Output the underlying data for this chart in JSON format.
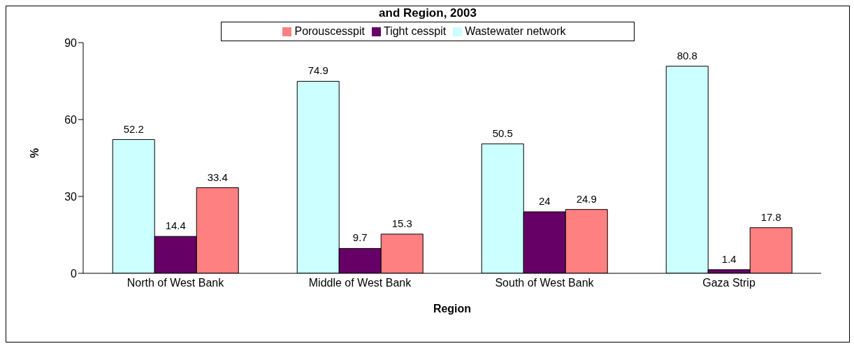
{
  "chart_data": {
    "type": "bar",
    "title": "and Region, 2003",
    "xlabel": "Region",
    "ylabel": "%",
    "categories": [
      "North of West Bank",
      "Middle of West Bank",
      "South of West Bank",
      "Gaza Strip"
    ],
    "series": [
      {
        "name": "Wastewater network",
        "color": "#ccffff",
        "values": [
          52.2,
          74.9,
          50.5,
          80.8
        ]
      },
      {
        "name": "Tight cesspit",
        "color": "#660066",
        "values": [
          14.4,
          9.7,
          24,
          1.4
        ]
      },
      {
        "name": "Porouscesspit",
        "color": "#ff8080",
        "values": [
          33.4,
          15.3,
          24.9,
          17.8
        ]
      }
    ],
    "ylim": [
      0,
      90
    ],
    "yticks": [
      0,
      30,
      60,
      90
    ],
    "grid": false,
    "legend": "top",
    "data_labels": true
  }
}
